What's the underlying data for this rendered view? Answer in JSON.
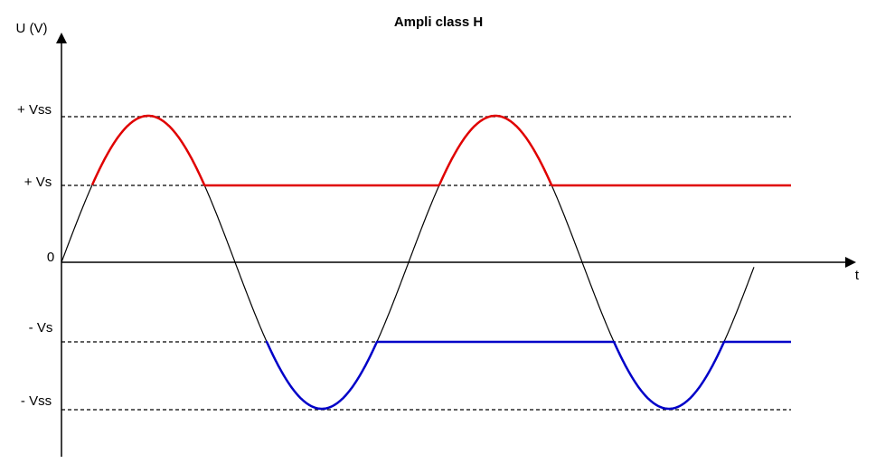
{
  "title": "Ampli class H",
  "axes": {
    "y_label": "U (V)",
    "x_label": "t"
  },
  "levels": {
    "vss_pos": "+ Vss",
    "vs_pos": "+ Vs",
    "zero": "0",
    "vs_neg": "- Vs",
    "vss_neg": "- Vss"
  }
}
